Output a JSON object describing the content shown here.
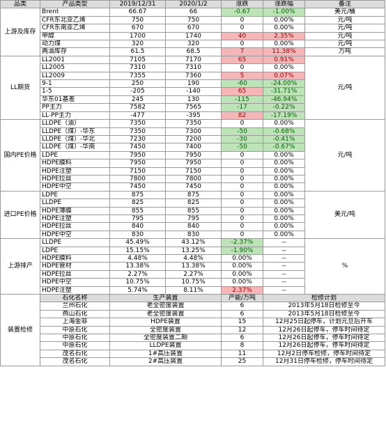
{
  "main_table": {
    "headers": [
      "品类",
      "产品类型",
      "2019/12/31",
      "2020/1/2",
      "涨跌",
      "涨跌幅",
      "备注"
    ],
    "groups": [
      {
        "category": "上游及库存",
        "rows": [
          {
            "name": "Brent",
            "v1": "66.67",
            "v2": "66",
            "chg": "-0.67",
            "pct": "-1.00%",
            "chg_dir": "neg",
            "pct_dir": "neg",
            "note": "美元/桶"
          },
          {
            "name": "CFR东北亚乙烯",
            "v1": "750",
            "v2": "750",
            "chg": "0",
            "pct": "0.00%",
            "chg_dir": "",
            "pct_dir": "",
            "note": "元/吨"
          },
          {
            "name": "CFR东南亚乙烯",
            "v1": "670",
            "v2": "670",
            "chg": "0",
            "pct": "0.00%",
            "chg_dir": "",
            "pct_dir": "",
            "note": "元/吨"
          },
          {
            "name": "甲醇",
            "v1": "1700",
            "v2": "1740",
            "chg": "40",
            "pct": "2.35%",
            "chg_dir": "pos",
            "pct_dir": "pos",
            "note": "元/吨"
          },
          {
            "name": "动力煤",
            "v1": "320",
            "v2": "320",
            "chg": "0",
            "pct": "0.00%",
            "chg_dir": "",
            "pct_dir": "",
            "note": "元/吨"
          },
          {
            "name": "两油库存",
            "v1": "61.5",
            "v2": "68.5",
            "chg": "7",
            "pct": "11.38%",
            "chg_dir": "pos",
            "pct_dir": "pos",
            "note": "万吨"
          }
        ]
      },
      {
        "category": "LL期货",
        "note": "元/吨",
        "rows": [
          {
            "name": "LL2001",
            "v1": "7105",
            "v2": "7170",
            "chg": "65",
            "pct": "0.91%",
            "chg_dir": "pos",
            "pct_dir": "pos"
          },
          {
            "name": "LL2005",
            "v1": "7310",
            "v2": "7310",
            "chg": "0",
            "pct": "0.00%",
            "chg_dir": "",
            "pct_dir": ""
          },
          {
            "name": "LL2009",
            "v1": "7355",
            "v2": "7360",
            "chg": "5",
            "pct": "0.07%",
            "chg_dir": "pos",
            "pct_dir": "pos"
          },
          {
            "name": "9-1",
            "v1": "250",
            "v2": "190",
            "chg": "-60",
            "pct": "-24.00%",
            "chg_dir": "neg",
            "pct_dir": "neg"
          },
          {
            "name": "1-5",
            "v1": "-205",
            "v2": "-140",
            "chg": "65",
            "pct": "-31.71%",
            "chg_dir": "pos",
            "pct_dir": "neg"
          },
          {
            "name": "华东01基差",
            "v1": "245",
            "v2": "130",
            "chg": "-115",
            "pct": "-46.94%",
            "chg_dir": "neg",
            "pct_dir": "neg"
          },
          {
            "name": "PP主力",
            "v1": "7582",
            "v2": "7565",
            "chg": "-17",
            "pct": "-0.22%",
            "chg_dir": "neg",
            "pct_dir": "neg"
          },
          {
            "name": "LL-PP主力",
            "v1": "-477",
            "v2": "-395",
            "chg": "82",
            "pct": "-17.19%",
            "chg_dir": "pos",
            "pct_dir": "neg"
          }
        ]
      },
      {
        "category": "国内PE价格",
        "note": "元/吨",
        "rows": [
          {
            "name": "LLDPE（油）",
            "v1": "7350",
            "v2": "7350",
            "chg": "0",
            "pct": "0.00%",
            "chg_dir": "",
            "pct_dir": ""
          },
          {
            "name": "LLDPE（煤）-华东",
            "v1": "7350",
            "v2": "7300",
            "chg": "-50",
            "pct": "-0.68%",
            "chg_dir": "neg",
            "pct_dir": "neg"
          },
          {
            "name": "LLDPE（煤）-华北",
            "v1": "7230",
            "v2": "7200",
            "chg": "-30",
            "pct": "-0.41%",
            "chg_dir": "neg",
            "pct_dir": "neg"
          },
          {
            "name": "LLDPE（煤）-华南",
            "v1": "7450",
            "v2": "7400",
            "chg": "-50",
            "pct": "-0.67%",
            "chg_dir": "neg",
            "pct_dir": "neg"
          },
          {
            "name": "LDPE",
            "v1": "7950",
            "v2": "7950",
            "chg": "0",
            "pct": "0.00%",
            "chg_dir": "",
            "pct_dir": ""
          },
          {
            "name": "HDPE膜料",
            "v1": "7950",
            "v2": "7950",
            "chg": "0",
            "pct": "0.00%",
            "chg_dir": "",
            "pct_dir": ""
          },
          {
            "name": "HDPE注塑",
            "v1": "7150",
            "v2": "7150",
            "chg": "0",
            "pct": "0.00%",
            "chg_dir": "",
            "pct_dir": ""
          },
          {
            "name": "HDPE拉丝",
            "v1": "7800",
            "v2": "7800",
            "chg": "0",
            "pct": "0.00%",
            "chg_dir": "",
            "pct_dir": ""
          },
          {
            "name": "HDPE中空",
            "v1": "7450",
            "v2": "7450",
            "chg": "0",
            "pct": "0.00%",
            "chg_dir": "",
            "pct_dir": ""
          }
        ]
      },
      {
        "category": "进口PE价格",
        "note": "美元/吨",
        "rows": [
          {
            "name": "LDPE",
            "v1": "875",
            "v2": "875",
            "chg": "0",
            "pct": "0.00%",
            "chg_dir": "",
            "pct_dir": ""
          },
          {
            "name": "LLDPE",
            "v1": "825",
            "v2": "825",
            "chg": "0",
            "pct": "0.00%",
            "chg_dir": "",
            "pct_dir": ""
          },
          {
            "name": "HDPE薄膜",
            "v1": "855",
            "v2": "855",
            "chg": "0",
            "pct": "0.00%",
            "chg_dir": "",
            "pct_dir": ""
          },
          {
            "name": "HDPE注塑",
            "v1": "795",
            "v2": "795",
            "chg": "0",
            "pct": "0.00%",
            "chg_dir": "",
            "pct_dir": ""
          },
          {
            "name": "HDPE拉丝",
            "v1": "840",
            "v2": "840",
            "chg": "0",
            "pct": "0.00%",
            "chg_dir": "",
            "pct_dir": ""
          },
          {
            "name": "HDPE中空",
            "v1": "830",
            "v2": "830",
            "chg": "0",
            "pct": "0.00%",
            "chg_dir": "",
            "pct_dir": ""
          }
        ]
      },
      {
        "category": "上游排产",
        "note": "%",
        "rows": [
          {
            "name": "LLDPE",
            "v1": "45.49%",
            "v2": "43.12%",
            "chg": "-2.37%",
            "pct": "--",
            "chg_dir": "neg",
            "pct_dir": ""
          },
          {
            "name": "LDPE",
            "v1": "15.15%",
            "v2": "13.25%",
            "chg": "-1.90%",
            "pct": "--",
            "chg_dir": "neg",
            "pct_dir": ""
          },
          {
            "name": "HDPE膜料",
            "v1": "4.48%",
            "v2": "4.48%",
            "chg": "0.00%",
            "pct": "--",
            "chg_dir": "",
            "pct_dir": ""
          },
          {
            "name": "HDPE管材",
            "v1": "13.38%",
            "v2": "13.38%",
            "chg": "0.00%",
            "pct": "--",
            "chg_dir": "",
            "pct_dir": ""
          },
          {
            "name": "HDPE拉丝",
            "v1": "2.27%",
            "v2": "2.27%",
            "chg": "0.00%",
            "pct": "--",
            "chg_dir": "",
            "pct_dir": ""
          },
          {
            "name": "HDPE中空",
            "v1": "10.75%",
            "v2": "10.75%",
            "chg": "0.00%",
            "pct": "--",
            "chg_dir": "",
            "pct_dir": ""
          },
          {
            "name": "HDPE注塑",
            "v1": "5.74%",
            "v2": "8.11%",
            "chg": "2.37%",
            "pct": "--",
            "chg_dir": "pos",
            "pct_dir": ""
          }
        ]
      }
    ]
  },
  "maintenance": {
    "category": "装置检修",
    "headers": [
      "石化名称",
      "生产装置",
      "产能/万吨",
      "检修计划"
    ],
    "rows": [
      {
        "company": "兰州石化",
        "unit": "老全密度装置",
        "capacity": "6",
        "plan": "2013年5月18日检修至今"
      },
      {
        "company": "燕山石化",
        "unit": "老全密度装置",
        "capacity": "6",
        "plan": "2013年5月18日检修至今"
      },
      {
        "company": "上海金菲",
        "unit": "HDPE装置",
        "capacity": "15",
        "plan": "12月25日起停车，计划元旦后开车"
      },
      {
        "company": "中原石化",
        "unit": "全密度装置",
        "capacity": "12",
        "plan": "12月26日起停车，停车时间待定"
      },
      {
        "company": "中原石化",
        "unit": "全密度装置二期",
        "capacity": "6",
        "plan": "12月26日起停车，停车时间待定"
      },
      {
        "company": "中原石化",
        "unit": "LLDPE装置",
        "capacity": "8",
        "plan": "12月26日起停车，停车时间待定"
      },
      {
        "company": "茂名石化",
        "unit": "1#高压装置",
        "capacity": "11",
        "plan": "12月2日停车检修，停车时间待定"
      },
      {
        "company": "茂名石化",
        "unit": "2#高压装置",
        "capacity": "25",
        "plan": "12月31日停车检修，停车时间待定"
      }
    ]
  },
  "colors": {
    "up_fill": "#f4b6b6",
    "up_text": "#9c0006",
    "down_fill": "#bfe3b9",
    "down_text": "#006100",
    "header_fill": "#dcdcdc"
  }
}
